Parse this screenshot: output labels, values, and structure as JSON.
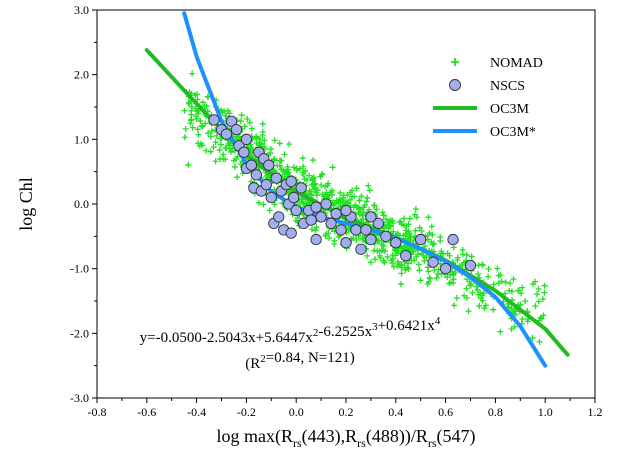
{
  "chart_data": {
    "type": "scatter",
    "xlabel": "log max(R_rs(443),R_rs(488))/R_rs(547)",
    "ylabel": "log Chl",
    "xlim": [
      -0.8,
      1.2
    ],
    "ylim": [
      -3.0,
      3.0
    ],
    "x_ticks": [
      "-0.8",
      "-0.6",
      "-0.4",
      "-0.2",
      "0.0",
      "0.2",
      "0.4",
      "0.6",
      "0.8",
      "1.0",
      "1.2"
    ],
    "y_ticks": [
      "-3.0",
      "-2.0",
      "-1.0",
      "0.0",
      "1.0",
      "2.0",
      "3.0"
    ],
    "grid": false,
    "legend_position": "top-right",
    "colors": {
      "nomad": "#22e022",
      "nscs_fill": "#a3aef0",
      "nscs_edge": "#333333",
      "oc3m": "#22bb22",
      "oc3m_star": "#1e90ff"
    },
    "legend": [
      {
        "label": "NOMAD",
        "marker": "plus",
        "color": "#22e022"
      },
      {
        "label": "NSCS",
        "marker": "circle",
        "color": "#a3aef0"
      },
      {
        "label": "OC3M",
        "marker": "line",
        "color": "#22bb22"
      },
      {
        "label": "OC3M*",
        "marker": "line",
        "color": "#1e90ff"
      }
    ],
    "annotation": {
      "equation": "y=-0.0500-2.5043x+5.6447x²-6.2525x³+0.6421x⁴",
      "stats": "(R²=0.84, N=121)"
    },
    "nomad_trend": [
      [
        -0.55,
        1.9
      ],
      [
        -0.3,
        1.1
      ],
      [
        0.0,
        0.2
      ],
      [
        0.3,
        -0.4
      ],
      [
        0.6,
        -0.9
      ],
      [
        0.9,
        -1.6
      ]
    ],
    "series": [
      {
        "name": "NSCS",
        "points": [
          [
            -0.33,
            1.3
          ],
          [
            -0.3,
            1.15
          ],
          [
            -0.28,
            1.08
          ],
          [
            -0.26,
            1.28
          ],
          [
            -0.24,
            1.15
          ],
          [
            -0.23,
            0.9
          ],
          [
            -0.21,
            0.8
          ],
          [
            -0.2,
            0.55
          ],
          [
            -0.2,
            1.0
          ],
          [
            -0.18,
            0.6
          ],
          [
            -0.17,
            0.25
          ],
          [
            -0.16,
            0.45
          ],
          [
            -0.15,
            0.8
          ],
          [
            -0.14,
            0.2
          ],
          [
            -0.13,
            0.7
          ],
          [
            -0.12,
            0.3
          ],
          [
            -0.11,
            0.6
          ],
          [
            -0.1,
            0.1
          ],
          [
            -0.09,
            -0.3
          ],
          [
            -0.08,
            0.4
          ],
          [
            -0.07,
            -0.2
          ],
          [
            -0.06,
            0.2
          ],
          [
            -0.05,
            -0.4
          ],
          [
            -0.04,
            0.3
          ],
          [
            -0.03,
            0.0
          ],
          [
            -0.02,
            -0.45
          ],
          [
            -0.01,
            0.1
          ],
          [
            0.0,
            -0.1
          ],
          [
            0.02,
            0.25
          ],
          [
            0.03,
            -0.3
          ],
          [
            0.05,
            -0.1
          ],
          [
            0.06,
            -0.25
          ],
          [
            0.08,
            -0.55
          ],
          [
            0.1,
            -0.2
          ],
          [
            0.12,
            0.0
          ],
          [
            0.14,
            -0.3
          ],
          [
            0.16,
            -0.15
          ],
          [
            0.18,
            -0.4
          ],
          [
            0.2,
            -0.6
          ],
          [
            0.22,
            -0.2
          ],
          [
            0.24,
            -0.4
          ],
          [
            0.26,
            -0.7
          ],
          [
            0.28,
            -0.4
          ],
          [
            0.3,
            -0.55
          ],
          [
            0.33,
            -0.3
          ],
          [
            0.36,
            -0.5
          ],
          [
            0.4,
            -0.6
          ],
          [
            0.44,
            -0.8
          ],
          [
            0.5,
            -0.55
          ],
          [
            0.55,
            -0.9
          ],
          [
            0.6,
            -1.0
          ],
          [
            0.63,
            -0.55
          ],
          [
            0.7,
            -0.95
          ],
          [
            -0.02,
            0.35
          ],
          [
            0.08,
            -0.05
          ],
          [
            0.2,
            -0.1
          ],
          [
            0.3,
            -0.2
          ]
        ]
      },
      {
        "name": "OC3M",
        "points": [
          [
            -0.6,
            2.38
          ],
          [
            -0.4,
            1.55
          ],
          [
            -0.2,
            0.75
          ],
          [
            0.0,
            0.19
          ],
          [
            0.2,
            -0.22
          ],
          [
            0.4,
            -0.52
          ],
          [
            0.6,
            -0.87
          ],
          [
            0.8,
            -1.34
          ],
          [
            1.0,
            -1.93
          ],
          [
            1.09,
            -2.33
          ]
        ]
      },
      {
        "name": "OC3M*",
        "points": [
          [
            -0.45,
            2.95
          ],
          [
            -0.4,
            2.28
          ],
          [
            -0.3,
            1.28
          ],
          [
            -0.2,
            0.62
          ],
          [
            -0.1,
            0.19
          ],
          [
            0.0,
            -0.05
          ],
          [
            0.1,
            -0.2
          ],
          [
            0.2,
            -0.3
          ],
          [
            0.3,
            -0.4
          ],
          [
            0.4,
            -0.53
          ],
          [
            0.5,
            -0.69
          ],
          [
            0.6,
            -0.89
          ],
          [
            0.7,
            -1.13
          ],
          [
            0.8,
            -1.44
          ],
          [
            0.9,
            -1.89
          ],
          [
            1.0,
            -2.5
          ]
        ]
      }
    ]
  }
}
